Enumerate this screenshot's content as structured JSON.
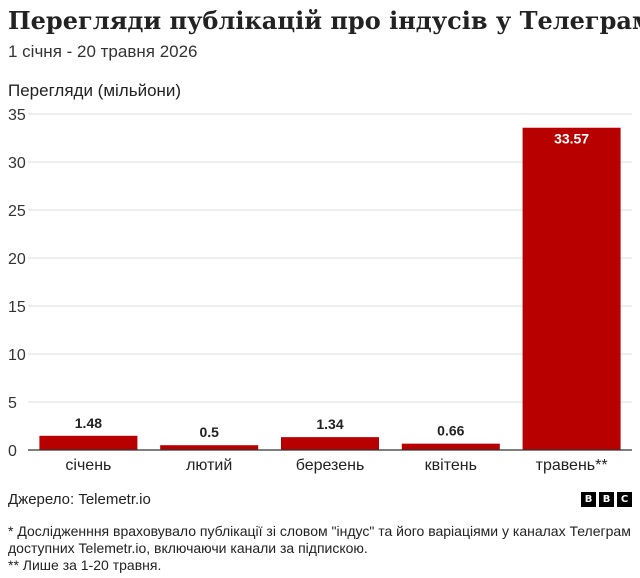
{
  "title": "Перегляди публікацій про індусів у Телеграм*",
  "subtitle": "1 січня - 20 травня 2026",
  "ylabel": "Перегляди (мільйони)",
  "source": "Джерело: Telemetr.io",
  "logo": [
    "B",
    "B",
    "C"
  ],
  "notes": [
    "* Дослідженння враховувало публікації зі словом \"індус\" та його варіаціями у каналах Телеграм доступних Telemetr.io, включаючи канали за підпискою.",
    "** Лише за 1-20 травня."
  ],
  "colors": {
    "bar": "#b80000",
    "grid": "#dddddd",
    "axis": "#333333",
    "text": "#222222"
  },
  "chart_data": {
    "type": "bar",
    "categories": [
      "січень",
      "лютий",
      "березень",
      "квітень",
      "травень**"
    ],
    "values": [
      1.48,
      0.5,
      1.34,
      0.66,
      33.57
    ],
    "value_labels": [
      "1.48",
      "0.5",
      "1.34",
      "0.66",
      "33.57"
    ],
    "ylabel": "Перегляди (мільйони)",
    "ylim": [
      0,
      35
    ],
    "yticks": [
      0,
      5,
      10,
      15,
      20,
      25,
      30,
      35
    ],
    "grid": true
  }
}
